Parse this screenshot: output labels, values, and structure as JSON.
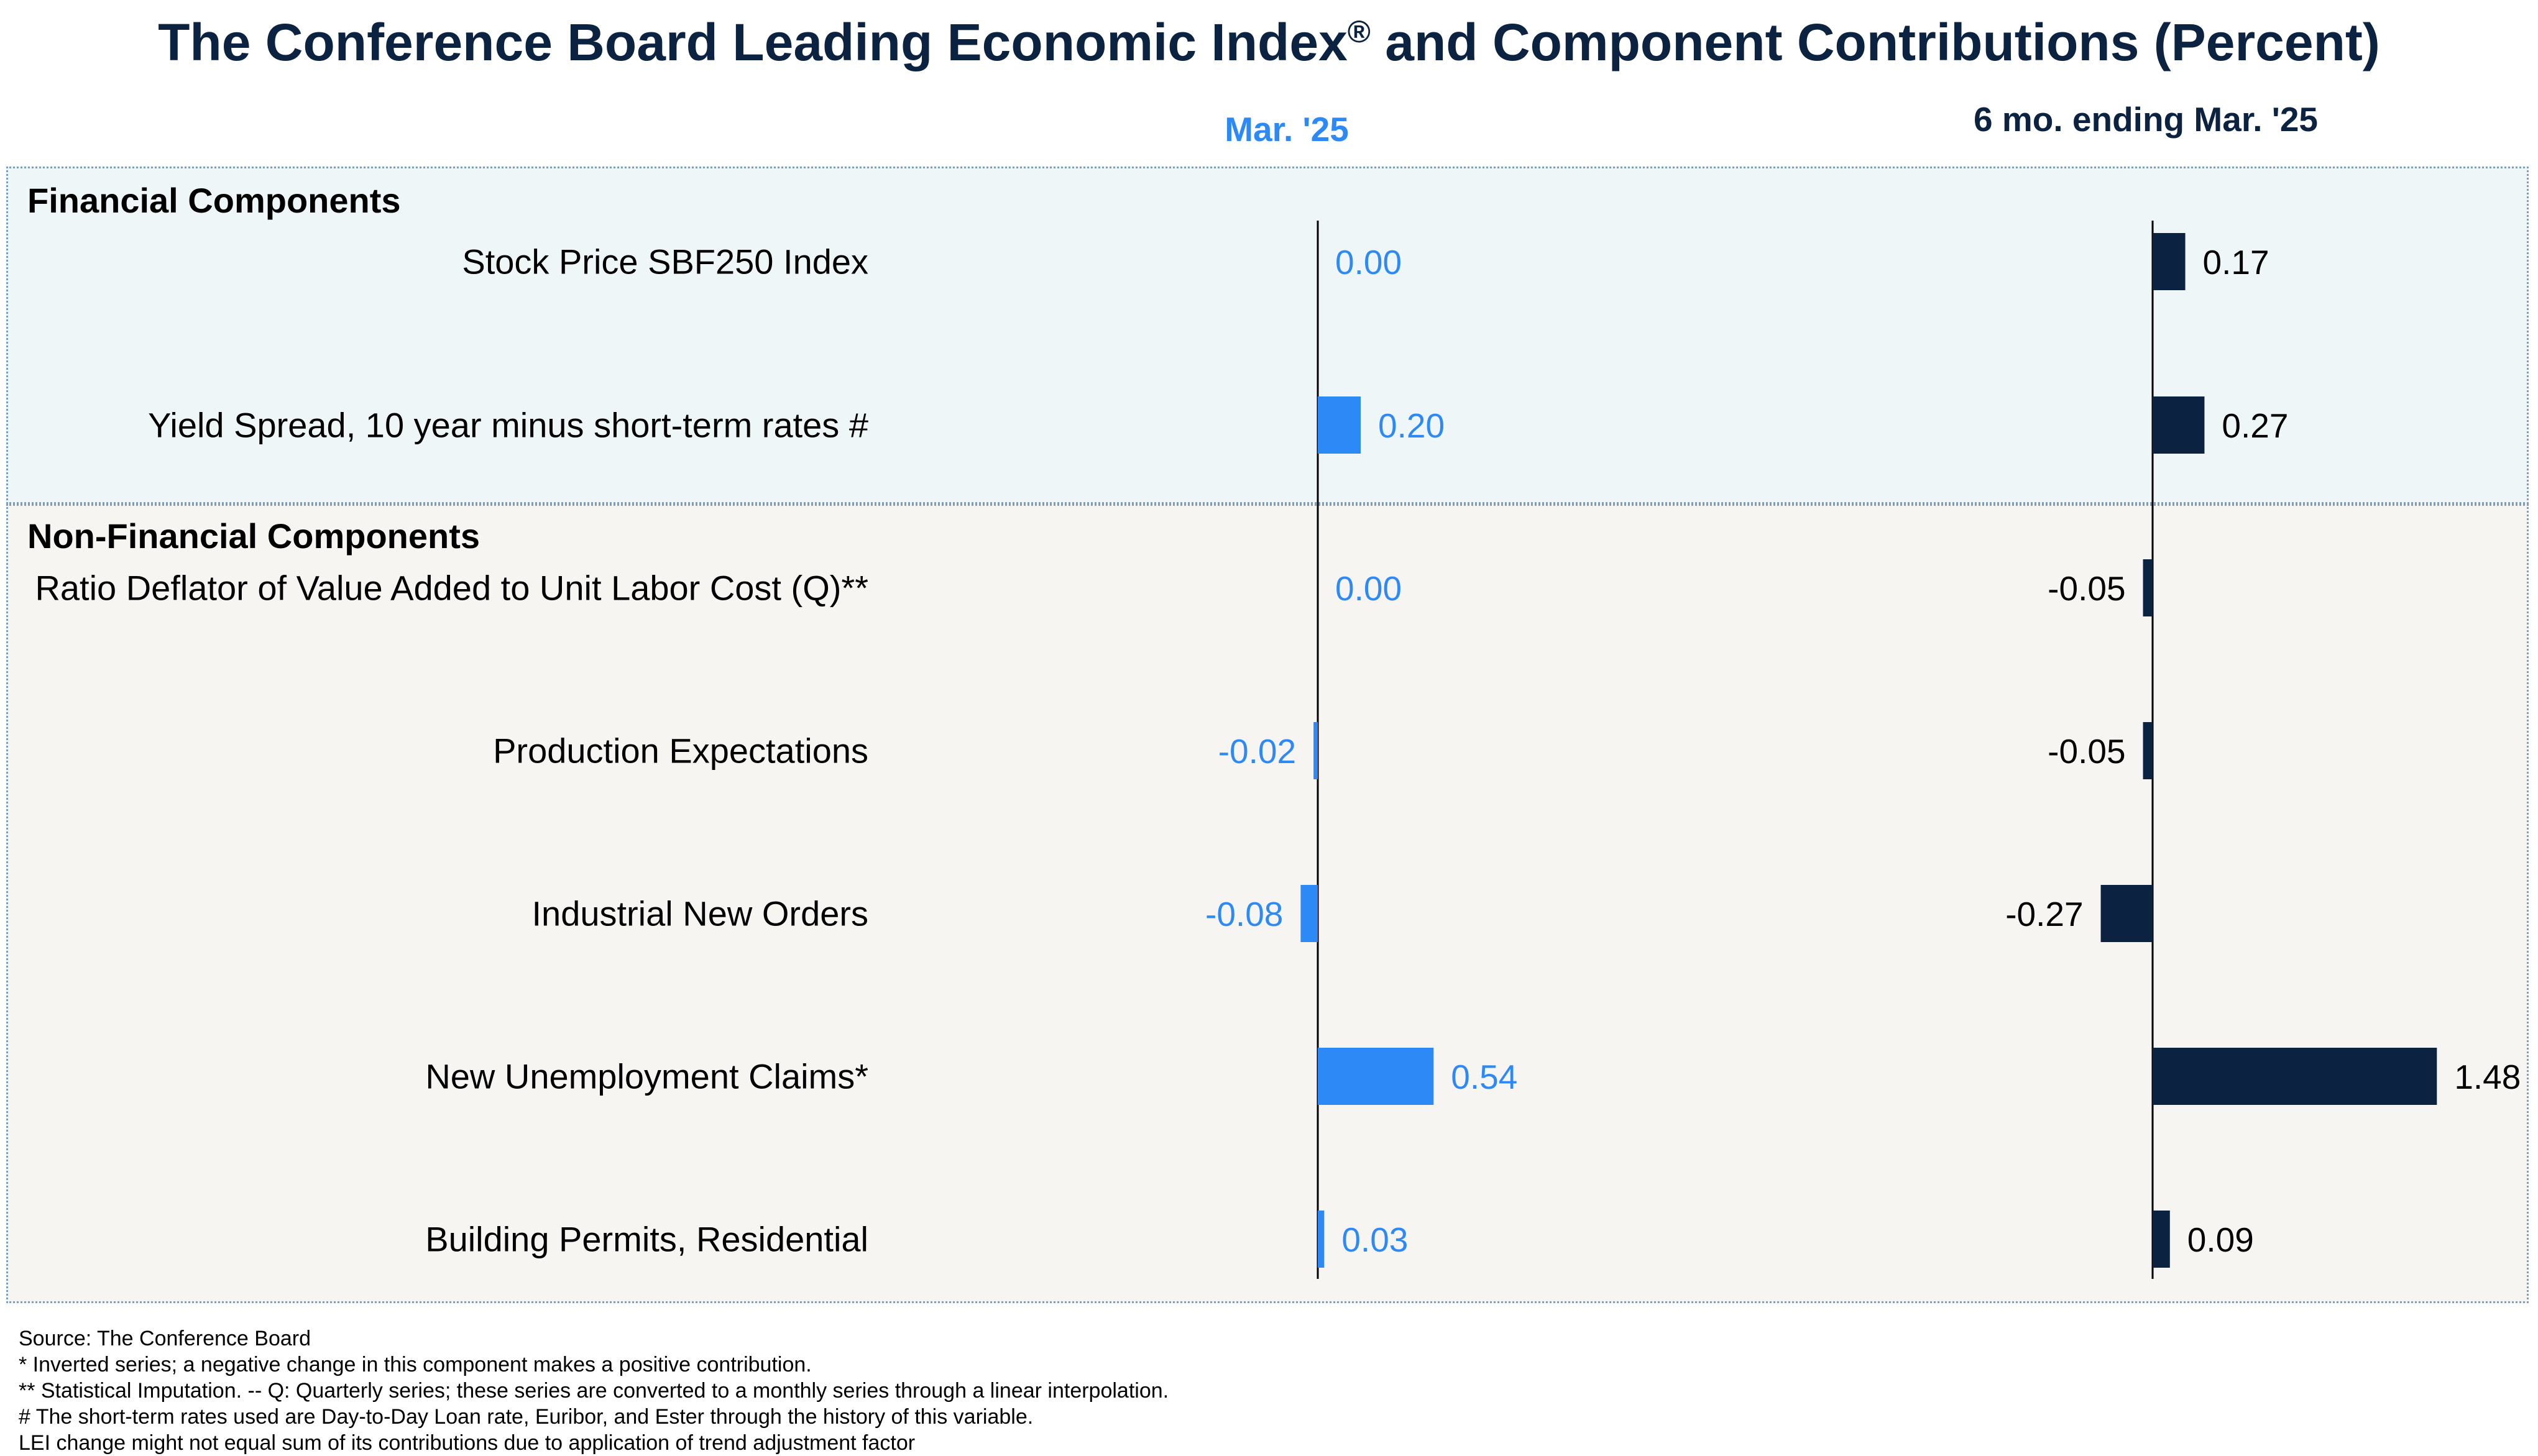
{
  "title_main": "The Conference Board Leading Economic Index",
  "title_sup": "®",
  "title_rest": " and Component Contributions (Percent)",
  "column_headers": {
    "monthly": "Mar. '25",
    "six_month": "6 mo. ending Mar. '25"
  },
  "sections": {
    "financial": "Financial Components",
    "non_financial": "Non-Financial Components"
  },
  "colors": {
    "monthly_bar": "#2d89f5",
    "six_month_bar": "#0b2240",
    "financial_panel": "#eef6f8",
    "non_financial_panel": "#f6f5f2"
  },
  "chart_data": {
    "type": "bar",
    "orientation": "horizontal",
    "categories": [
      "Stock Price SBF250 Index",
      "Yield Spread, 10 year minus short-term rates #",
      "Ratio Deflator of Value Added to Unit Labor Cost (Q)**",
      "Production Expectations",
      "Industrial New Orders",
      "New Unemployment Claims*",
      "Building Permits, Residential"
    ],
    "groups": [
      "Financial Components",
      "Financial Components",
      "Non-Financial Components",
      "Non-Financial Components",
      "Non-Financial Components",
      "Non-Financial Components",
      "Non-Financial Components"
    ],
    "series": [
      {
        "name": "Mar. '25",
        "values": [
          0.0,
          0.2,
          0.0,
          -0.02,
          -0.08,
          0.54,
          0.03
        ],
        "labels": [
          "0.00",
          "0.20",
          "0.00",
          "-0.02",
          "-0.08",
          "0.54",
          "0.03"
        ]
      },
      {
        "name": "6 mo. ending Mar. '25",
        "values": [
          0.17,
          0.27,
          -0.05,
          -0.05,
          -0.27,
          1.48,
          0.09
        ],
        "labels": [
          "0.17",
          "0.27",
          "-0.05",
          "-0.05",
          "-0.27",
          "1.48",
          "0.09"
        ]
      }
    ],
    "grid": false,
    "legend": "none"
  },
  "footnotes": [
    "Source: The Conference Board",
    "*  Inverted series; a negative change in this component makes a positive contribution.",
    "**  Statistical Imputation. -- Q: Quarterly series; these series are converted to a monthly series through a linear interpolation.",
    "# The short-term rates used are Day-to-Day Loan rate, Euribor, and Ester through the history of this variable.",
    "LEI change might not equal sum of its contributions due to application of trend adjustment factor"
  ]
}
